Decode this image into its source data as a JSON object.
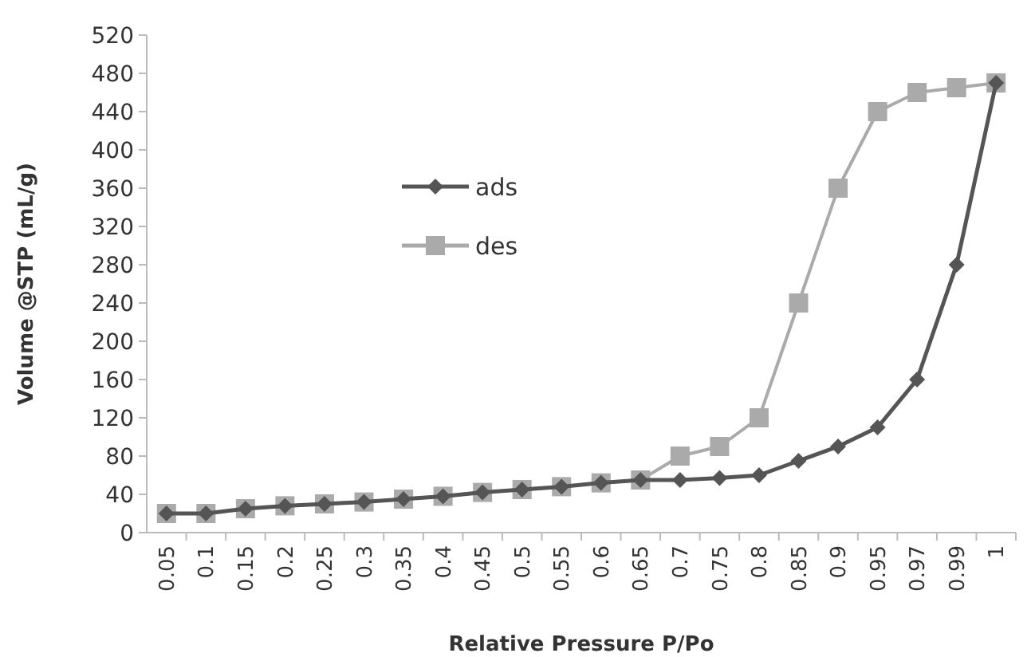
{
  "chart_data": {
    "type": "line",
    "xlabel": "Relative Pressure P/Po",
    "ylabel": "Volume @STP (mL/g)",
    "categories": [
      "0.05",
      "0.1",
      "0.15",
      "0.2",
      "0.25",
      "0.3",
      "0.35",
      "0.4",
      "0.45",
      "0.5",
      "0.55",
      "0.6",
      "0.65",
      "0.7",
      "0.75",
      "0.8",
      "0.85",
      "0.9",
      "0.95",
      "0.97",
      "0.99",
      "1"
    ],
    "series": [
      {
        "name": "ads",
        "color": "#555555",
        "marker": "diamond",
        "values": [
          20,
          20,
          25,
          28,
          30,
          32,
          35,
          38,
          42,
          45,
          48,
          52,
          55,
          55,
          57,
          60,
          75,
          90,
          110,
          160,
          280,
          470
        ]
      },
      {
        "name": "des",
        "color": "#aaaaaa",
        "marker": "square",
        "values": [
          20,
          20,
          25,
          28,
          30,
          32,
          35,
          38,
          42,
          45,
          48,
          52,
          55,
          80,
          90,
          120,
          240,
          360,
          440,
          460,
          465,
          470
        ]
      }
    ],
    "ylim": [
      0,
      520
    ],
    "yticks": [
      0,
      40,
      80,
      120,
      160,
      200,
      240,
      280,
      320,
      360,
      400,
      440,
      480,
      520
    ],
    "grid": false,
    "legend": "top left",
    "line_style": "solid"
  }
}
